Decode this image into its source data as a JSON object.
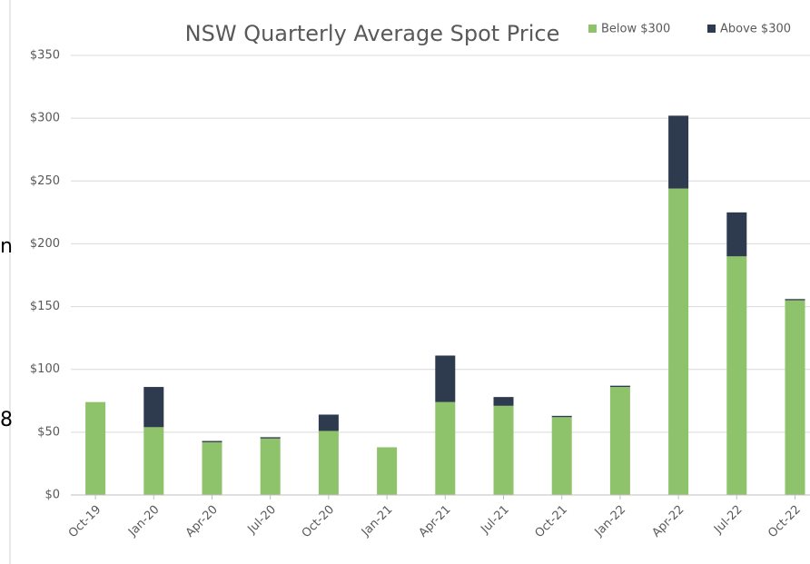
{
  "page_fragments": [
    "n",
    "8"
  ],
  "chart_data": {
    "type": "stacked_bar",
    "title": "NSW Quarterly Average Spot Price",
    "categories": [
      "Oct-19",
      "Jan-20",
      "Apr-20",
      "Jul-20",
      "Oct-20",
      "Jan-21",
      "Apr-21",
      "Jul-21",
      "Oct-21",
      "Jan-22",
      "Apr-22",
      "Jul-22",
      "Oct-22"
    ],
    "series": [
      {
        "name": "Below $300",
        "color": "#8fc36b",
        "values": [
          74,
          54,
          42,
          45,
          51,
          38,
          74,
          71,
          62,
          86,
          244,
          190,
          155
        ]
      },
      {
        "name": "Above $300",
        "color": "#2e3a4e",
        "values": [
          0,
          32,
          1,
          1,
          13,
          0,
          37,
          7,
          1,
          1,
          58,
          35,
          1
        ]
      }
    ],
    "ylim": [
      0,
      350
    ],
    "yticks": [
      {
        "value": 0,
        "label": "$0"
      },
      {
        "value": 50,
        "label": "$50"
      },
      {
        "value": 100,
        "label": "$100"
      },
      {
        "value": 150,
        "label": "$150"
      },
      {
        "value": 200,
        "label": "$200"
      },
      {
        "value": 250,
        "label": "$250"
      },
      {
        "value": 300,
        "label": "$300"
      },
      {
        "value": 350,
        "label": "$350"
      }
    ],
    "grid": true,
    "legend": "top-right"
  }
}
